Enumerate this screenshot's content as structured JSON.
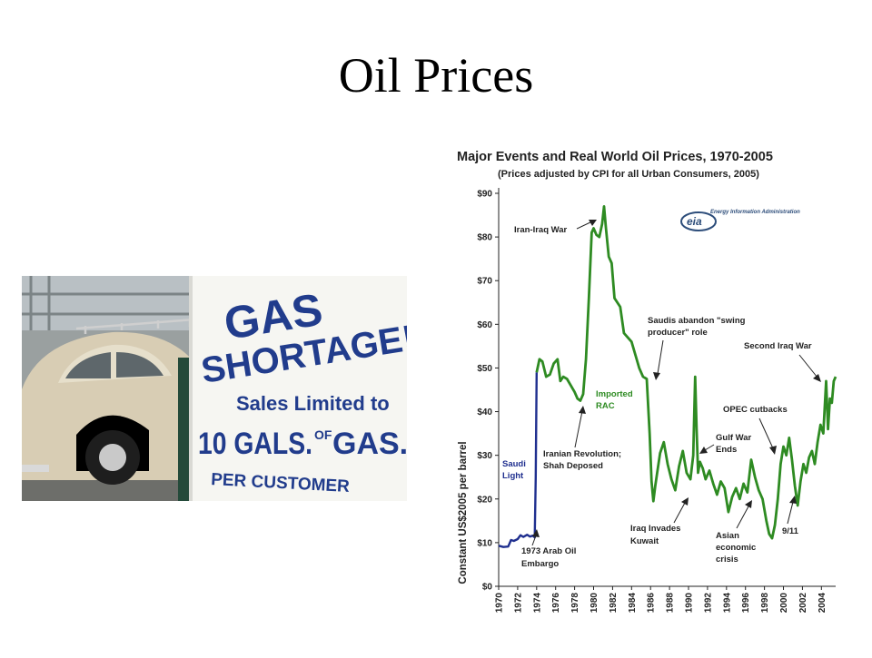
{
  "slide": {
    "title": "Oil Prices"
  },
  "photo": {
    "sign_lines": [
      "GAS",
      "SHORTAGE!",
      "Sales Limited to",
      "10 GALS.",
      "OF",
      "GAS.",
      "PER CUSTOMER"
    ]
  },
  "chart_data": {
    "type": "line",
    "title": "Major Events and Real World Oil Prices, 1970-2005",
    "subtitle": "(Prices adjusted by CPI for all Urban Consumers, 2005)",
    "ylabel": "Constant US$2005 per barrel",
    "xlabel": "",
    "xlim": [
      1970,
      2005.5
    ],
    "ylim": [
      0,
      90
    ],
    "y_ticks": [
      0,
      10,
      20,
      30,
      40,
      50,
      60,
      70,
      80,
      90
    ],
    "y_tick_labels": [
      "$0",
      "$10",
      "$20",
      "$30",
      "$40",
      "$50",
      "$60",
      "$70",
      "$80",
      "$90"
    ],
    "x_ticks": [
      "1970",
      "1972",
      "1974",
      "1976",
      "1978",
      "1980",
      "1982",
      "1984",
      "1986",
      "1988",
      "1990",
      "1992",
      "1994",
      "1996",
      "1998",
      "2000",
      "2002",
      "2004"
    ],
    "grid": false,
    "logo_text": "Energy Information Administration",
    "logo_mark": "eia",
    "series": [
      {
        "name": "Saudi Light",
        "label_lines": [
          "Saudi",
          "Light"
        ],
        "color": "#1f2f8f",
        "x": [
          1970,
          1970.5,
          1971,
          1971.3,
          1971.6,
          1972,
          1972.3,
          1972.6,
          1973,
          1973.3,
          1973.6,
          1973.8,
          1973.9,
          1974
        ],
        "y": [
          9.3,
          9.0,
          9.1,
          10.6,
          10.4,
          10.8,
          11.7,
          11.3,
          11.8,
          11.4,
          11.6,
          11.2,
          25,
          49
        ]
      },
      {
        "name": "Imported RAC",
        "label_lines": [
          "Imported",
          "RAC"
        ],
        "color": "#2e8b22",
        "x": [
          1974,
          1974.3,
          1974.6,
          1975,
          1975.4,
          1975.8,
          1976.2,
          1976.5,
          1976.8,
          1977.2,
          1977.6,
          1978,
          1978.3,
          1978.6,
          1978.9,
          1979.2,
          1979.5,
          1979.8,
          1980,
          1980.3,
          1980.6,
          1980.9,
          1981.1,
          1981.3,
          1981.6,
          1981.9,
          1982.2,
          1982.5,
          1982.8,
          1983.2,
          1983.6,
          1984,
          1984.4,
          1984.8,
          1985.2,
          1985.6,
          1985.9,
          1986.1,
          1986.3,
          1986.5,
          1986.7,
          1987,
          1987.4,
          1987.8,
          1988.2,
          1988.6,
          1989,
          1989.4,
          1989.8,
          1990.2,
          1990.5,
          1990.7,
          1990.85,
          1991,
          1991.2,
          1991.5,
          1991.8,
          1992.2,
          1992.6,
          1993,
          1993.4,
          1993.8,
          1994.2,
          1994.6,
          1995,
          1995.4,
          1995.8,
          1996.2,
          1996.6,
          1997,
          1997.4,
          1997.8,
          1998.2,
          1998.5,
          1998.8,
          1999.1,
          1999.4,
          1999.7,
          2000,
          2000.3,
          2000.6,
          2000.9,
          2001.2,
          2001.5,
          2001.8,
          2002.1,
          2002.4,
          2002.7,
          2003,
          2003.3,
          2003.6,
          2003.9,
          2004.2,
          2004.5,
          2004.7,
          2004.9,
          2005.1,
          2005.3,
          2005.5
        ],
        "y": [
          49,
          52,
          51.5,
          48,
          48.5,
          51,
          52,
          47,
          48,
          47.5,
          46,
          44.5,
          43,
          42.5,
          44,
          52,
          66,
          81,
          82,
          80.5,
          80,
          83,
          87,
          82,
          75.5,
          74,
          66,
          65,
          64,
          58,
          57,
          56,
          53,
          50,
          48,
          47.5,
          35,
          24,
          19.5,
          23,
          26,
          30.5,
          33,
          28,
          24.5,
          22,
          27.5,
          31,
          26,
          24.5,
          30,
          48,
          36,
          26,
          28.5,
          27,
          24.5,
          26.5,
          23.5,
          21,
          24,
          22.5,
          17,
          20.5,
          22.5,
          20,
          23.5,
          21.5,
          29,
          25,
          22,
          20,
          15,
          12,
          11,
          14,
          20,
          28,
          32,
          30,
          34,
          29,
          23,
          18.5,
          24,
          28,
          26,
          29.5,
          31,
          28,
          33,
          37,
          35,
          47,
          36,
          43,
          42,
          47,
          48
        ]
      }
    ],
    "annotations": [
      {
        "lines": [
          "Iran-Iraq War"
        ]
      },
      {
        "lines": [
          "Saudis abandon \"swing",
          "producer\" role"
        ]
      },
      {
        "lines": [
          "Second Iraq War"
        ]
      },
      {
        "lines": [
          "Iranian Revolution;",
          "Shah Deposed"
        ]
      },
      {
        "lines": [
          "OPEC cutbacks"
        ]
      },
      {
        "lines": [
          "Gulf War",
          "Ends"
        ]
      },
      {
        "lines": [
          "1973 Arab Oil",
          "Embargo"
        ]
      },
      {
        "lines": [
          "Iraq Invades",
          "Kuwait"
        ]
      },
      {
        "lines": [
          "Asian",
          "economic",
          "crisis"
        ]
      },
      {
        "lines": [
          "9/11"
        ]
      }
    ]
  }
}
